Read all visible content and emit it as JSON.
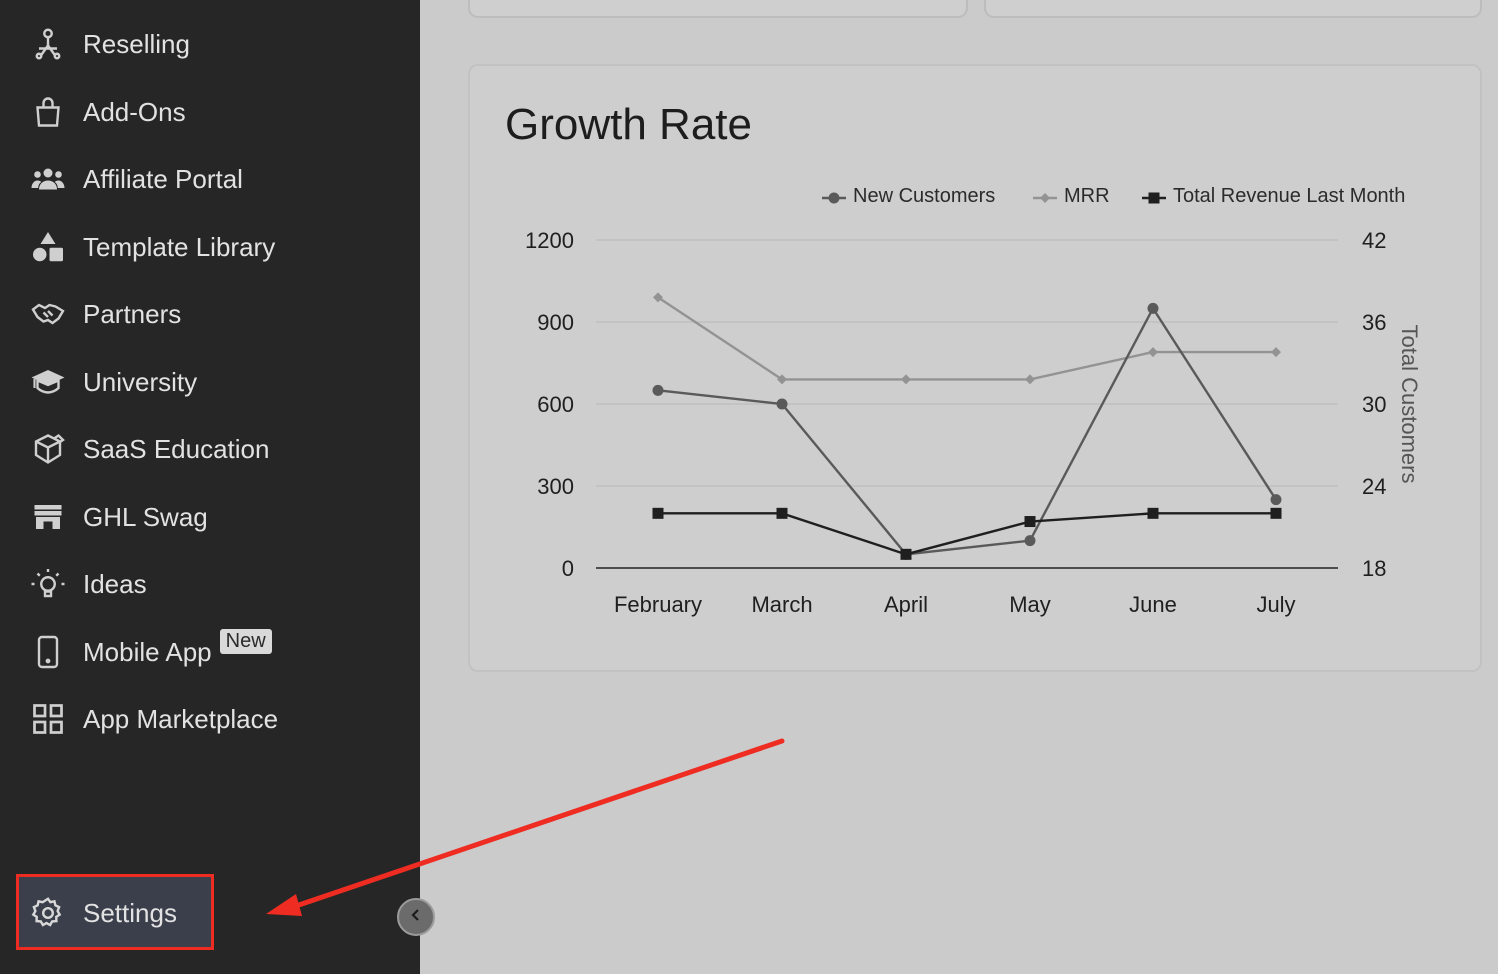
{
  "sidebar": {
    "items": [
      {
        "label": "Reselling",
        "icon": "reselling-icon"
      },
      {
        "label": "Add-Ons",
        "icon": "shopping-bag-icon"
      },
      {
        "label": "Affiliate Portal",
        "icon": "users-icon"
      },
      {
        "label": "Template Library",
        "icon": "shapes-icon"
      },
      {
        "label": "Partners",
        "icon": "handshake-icon"
      },
      {
        "label": "University",
        "icon": "graduation-cap-icon"
      },
      {
        "label": "SaaS Education",
        "icon": "box-icon"
      },
      {
        "label": "GHL Swag",
        "icon": "store-icon"
      },
      {
        "label": "Ideas",
        "icon": "lightbulb-icon"
      },
      {
        "label": "Mobile App",
        "icon": "mobile-icon",
        "badge": "New"
      },
      {
        "label": "App Marketplace",
        "icon": "grid-icon"
      }
    ],
    "settings": {
      "label": "Settings",
      "icon": "gear-icon"
    }
  },
  "colors": {
    "sidebar_bg": "#262626",
    "page_bg": "#cbcbcb",
    "highlight": "#ef2c22",
    "new_customers": "#5a5a5a",
    "mrr": "#939393",
    "total_revenue": "#1f1f1f"
  },
  "chart_data": {
    "type": "line",
    "title": "Growth Rate",
    "categories": [
      "February",
      "March",
      "April",
      "May",
      "June",
      "July"
    ],
    "series": [
      {
        "name": "New Customers",
        "axis": "left",
        "marker": "circle",
        "values": [
          650,
          600,
          50,
          100,
          950,
          250
        ]
      },
      {
        "name": "MRR",
        "axis": "left",
        "marker": "diamond",
        "values": [
          990,
          690,
          690,
          690,
          790,
          790
        ]
      },
      {
        "name": "Total Revenue Last Month",
        "axis": "right",
        "marker": "square",
        "values": [
          22,
          22,
          19,
          21.4,
          22,
          22
        ]
      }
    ],
    "y_left": {
      "ticks": [
        "0",
        "300",
        "600",
        "900",
        "1200"
      ],
      "lim": [
        0,
        1200
      ]
    },
    "y_right": {
      "ticks": [
        "18",
        "24",
        "30",
        "36",
        "42"
      ],
      "lim": [
        18,
        42
      ],
      "label": "Total Customers"
    },
    "legend": "top-right",
    "grid": true
  }
}
